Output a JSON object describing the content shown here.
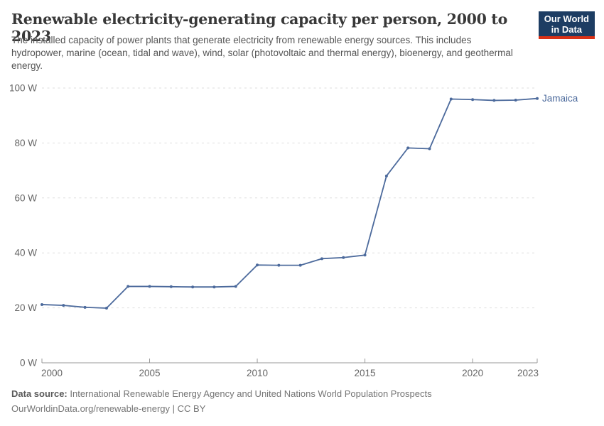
{
  "header": {
    "title": "Renewable electricity-generating capacity per person, 2000 to 2023",
    "subtitle": "The installed capacity of power plants that generate electricity from renewable energy sources. This includes hydropower, marine (ocean, tidal and wave), wind, solar (photovoltaic and thermal energy), bioenergy, and geothermal energy."
  },
  "logo": {
    "line1": "Our World",
    "line2": "in Data"
  },
  "chart_data": {
    "type": "line",
    "title": "Renewable electricity-generating capacity per person, 2000 to 2023",
    "unit": "W",
    "x": [
      2000,
      2001,
      2002,
      2003,
      2004,
      2005,
      2006,
      2007,
      2008,
      2009,
      2010,
      2011,
      2012,
      2013,
      2014,
      2015,
      2016,
      2017,
      2018,
      2019,
      2020,
      2021,
      2022,
      2023
    ],
    "series": [
      {
        "name": "Jamaica",
        "color": "#4c6a9c",
        "values": [
          21.2,
          20.9,
          20.2,
          19.9,
          27.8,
          27.8,
          27.7,
          27.6,
          27.6,
          27.8,
          35.6,
          35.5,
          35.5,
          37.9,
          38.3,
          39.2,
          68.0,
          78.2,
          77.9,
          96.0,
          95.8,
          95.5,
          95.6,
          96.2
        ]
      }
    ],
    "xlim": [
      2000,
      2023
    ],
    "ylim": [
      0,
      100
    ],
    "yticks": [
      {
        "value": 0,
        "label": "0 W"
      },
      {
        "value": 20,
        "label": "20 W"
      },
      {
        "value": 40,
        "label": "40 W"
      },
      {
        "value": 60,
        "label": "60 W"
      },
      {
        "value": 80,
        "label": "80 W"
      },
      {
        "value": 100,
        "label": "100 W"
      }
    ],
    "xticks": [
      {
        "value": 2000,
        "label": "2000"
      },
      {
        "value": 2005,
        "label": "2005"
      },
      {
        "value": 2010,
        "label": "2010"
      },
      {
        "value": 2015,
        "label": "2015"
      },
      {
        "value": 2020,
        "label": "2020"
      },
      {
        "value": 2023,
        "label": "2023"
      }
    ],
    "grid": "horizontal-dashed",
    "legend": "line-end-label"
  },
  "footer": {
    "source_label": "Data source:",
    "source_text": "International Renewable Energy Agency and United Nations World Population Prospects",
    "link_line": "OurWorldinData.org/renewable-energy | CC BY"
  },
  "colors": {
    "line": "#4c6a9c",
    "grid": "#dedede",
    "axis": "#999999",
    "tick_text": "#666666",
    "title_text": "#383838",
    "subtitle_text": "#555555",
    "footer_text": "#757575",
    "logo_bg": "#1d3d63",
    "logo_stripe": "#da3116"
  }
}
